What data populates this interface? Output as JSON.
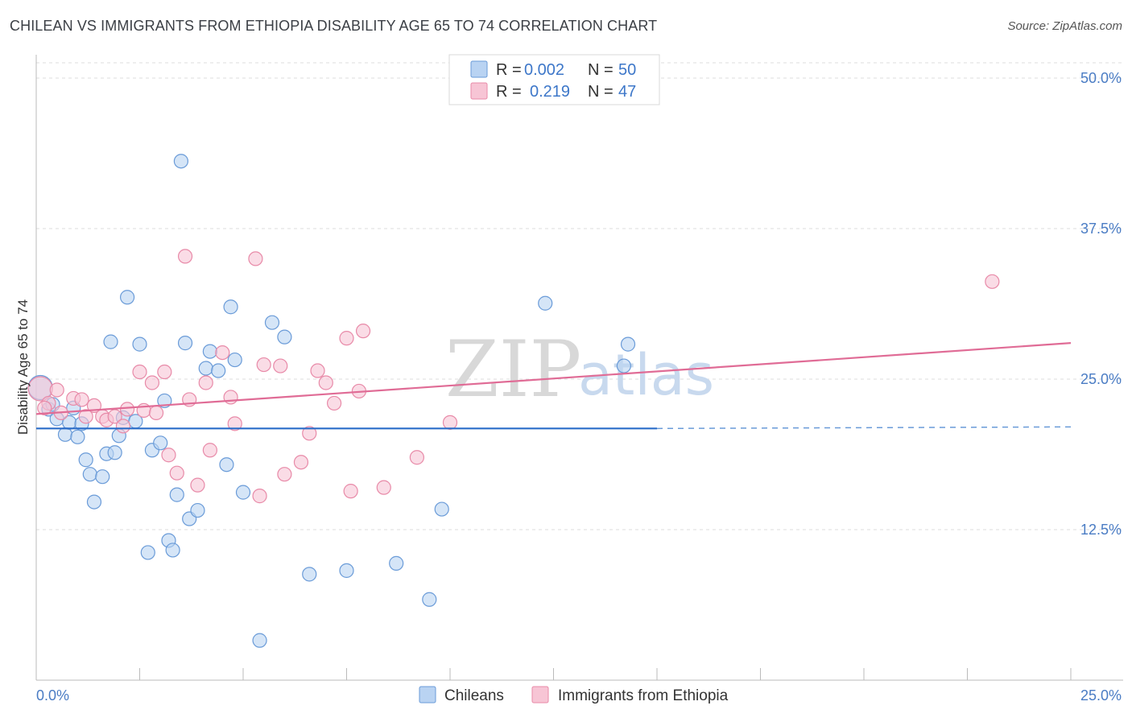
{
  "title": "CHILEAN VS IMMIGRANTS FROM ETHIOPIA DISABILITY AGE 65 TO 74 CORRELATION CHART",
  "source": "Source: ZipAtlas.com",
  "watermark": {
    "zip": "ZIP",
    "atlas": "atlas"
  },
  "colors": {
    "blue_fill": "#b9d3f2",
    "blue_stroke": "#6a9bd8",
    "blue_line": "#2a6cc8",
    "pink_fill": "#f7c5d5",
    "pink_stroke": "#e88aa8",
    "pink_line": "#e06c96",
    "grid": "#dddddd",
    "axis_text": "#4a7cc4"
  },
  "legend": {
    "rows": [
      {
        "r_label": "R = ",
        "r_value": "0.002",
        "n_label": "N = ",
        "n_value": "50"
      },
      {
        "r_label": "R = ",
        "r_value": "0.219",
        "n_label": "N = ",
        "n_value": "47"
      }
    ]
  },
  "chart_data": {
    "type": "scatter",
    "title": "CHILEAN VS IMMIGRANTS FROM ETHIOPIA DISABILITY AGE 65 TO 74 CORRELATION CHART",
    "xlabel": "",
    "ylabel": "Disability Age 65 to 74",
    "xlim": [
      0,
      25
    ],
    "ylim": [
      0,
      50
    ],
    "x_tick_labels": [
      "0.0%",
      "25.0%"
    ],
    "y_ticks": [
      12.5,
      25.0,
      37.5,
      50.0
    ],
    "y_tick_labels": [
      "12.5%",
      "25.0%",
      "37.5%",
      "50.0%"
    ],
    "series": [
      {
        "name": "Chileans",
        "trend": {
          "x": [
            0,
            15
          ],
          "y": [
            20.9,
            20.9
          ],
          "dashed_to_x": 25
        },
        "points": [
          [
            0.1,
            24.3
          ],
          [
            0.3,
            22.5
          ],
          [
            0.4,
            22.9
          ],
          [
            0.5,
            21.7
          ],
          [
            0.7,
            20.4
          ],
          [
            0.8,
            21.4
          ],
          [
            0.9,
            22.6
          ],
          [
            1.0,
            20.2
          ],
          [
            1.2,
            18.3
          ],
          [
            1.3,
            17.1
          ],
          [
            1.4,
            14.8
          ],
          [
            1.6,
            16.9
          ],
          [
            1.7,
            18.8
          ],
          [
            1.8,
            28.1
          ],
          [
            1.9,
            18.9
          ],
          [
            2.0,
            20.3
          ],
          [
            2.1,
            21.8
          ],
          [
            2.2,
            31.8
          ],
          [
            2.4,
            21.5
          ],
          [
            2.5,
            27.9
          ],
          [
            2.7,
            10.6
          ],
          [
            2.8,
            19.1
          ],
          [
            3.0,
            19.7
          ],
          [
            3.1,
            23.2
          ],
          [
            3.2,
            11.6
          ],
          [
            3.3,
            10.8
          ],
          [
            3.4,
            15.4
          ],
          [
            3.5,
            43.1
          ],
          [
            3.6,
            28.0
          ],
          [
            3.7,
            13.4
          ],
          [
            3.9,
            14.1
          ],
          [
            4.1,
            25.9
          ],
          [
            4.2,
            27.3
          ],
          [
            4.4,
            25.7
          ],
          [
            4.6,
            17.9
          ],
          [
            4.7,
            31.0
          ],
          [
            4.8,
            26.6
          ],
          [
            5.0,
            15.6
          ],
          [
            5.4,
            3.3
          ],
          [
            5.7,
            29.7
          ],
          [
            6.0,
            28.5
          ],
          [
            6.6,
            8.8
          ],
          [
            7.5,
            9.1
          ],
          [
            8.7,
            9.7
          ],
          [
            9.5,
            6.7
          ],
          [
            9.8,
            14.2
          ],
          [
            12.3,
            31.3
          ],
          [
            14.2,
            26.1
          ],
          [
            14.3,
            27.9
          ],
          [
            1.1,
            21.3
          ]
        ]
      },
      {
        "name": "Immigrants from Ethiopia",
        "trend": {
          "x": [
            0,
            25
          ],
          "y": [
            22.1,
            28.0
          ]
        },
        "points": [
          [
            0.1,
            24.2
          ],
          [
            0.3,
            23.0
          ],
          [
            0.5,
            24.1
          ],
          [
            0.6,
            22.2
          ],
          [
            0.9,
            23.4
          ],
          [
            1.1,
            23.3
          ],
          [
            1.2,
            21.9
          ],
          [
            1.4,
            22.8
          ],
          [
            1.6,
            21.9
          ],
          [
            1.7,
            21.6
          ],
          [
            1.9,
            21.9
          ],
          [
            2.1,
            21.1
          ],
          [
            2.2,
            22.5
          ],
          [
            2.5,
            25.6
          ],
          [
            2.6,
            22.4
          ],
          [
            2.8,
            24.7
          ],
          [
            2.9,
            22.2
          ],
          [
            3.1,
            25.6
          ],
          [
            3.2,
            18.7
          ],
          [
            3.4,
            17.2
          ],
          [
            3.6,
            35.2
          ],
          [
            3.7,
            23.3
          ],
          [
            3.9,
            16.2
          ],
          [
            4.1,
            24.7
          ],
          [
            4.2,
            19.1
          ],
          [
            4.5,
            27.2
          ],
          [
            4.7,
            23.5
          ],
          [
            4.8,
            21.3
          ],
          [
            5.3,
            35.0
          ],
          [
            5.4,
            15.3
          ],
          [
            5.5,
            26.2
          ],
          [
            5.9,
            26.1
          ],
          [
            6.0,
            17.1
          ],
          [
            6.4,
            18.1
          ],
          [
            6.6,
            20.5
          ],
          [
            6.8,
            25.7
          ],
          [
            7.0,
            24.7
          ],
          [
            7.2,
            23.0
          ],
          [
            7.5,
            28.4
          ],
          [
            7.6,
            15.7
          ],
          [
            7.8,
            24.0
          ],
          [
            7.9,
            29.0
          ],
          [
            8.4,
            16.0
          ],
          [
            9.2,
            18.5
          ],
          [
            10.0,
            21.4
          ],
          [
            23.1,
            33.1
          ],
          [
            0.2,
            22.6
          ]
        ]
      }
    ],
    "legend": {
      "position": "top-center",
      "entries": [
        "Chileans",
        "Immigrants from Ethiopia"
      ]
    }
  }
}
